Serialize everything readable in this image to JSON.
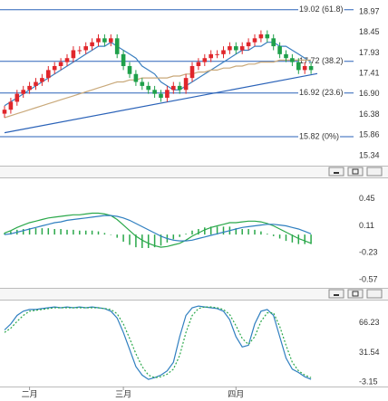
{
  "chart_data": [
    {
      "type": "candlestick",
      "ylim": [
        15.09,
        19.22
      ],
      "yticks": [
        15.34,
        15.86,
        16.38,
        {
          "value": 16.9,
          "label": "16.90"
        },
        17.41,
        17.93,
        18.45,
        18.97
      ],
      "up_color": "#e0262b",
      "down_color": "#1fa04a",
      "open": [
        16.4,
        16.5,
        16.7,
        16.9,
        17.0,
        17.1,
        17.2,
        17.3,
        17.5,
        17.6,
        17.7,
        17.8,
        18.0,
        18.0,
        18.1,
        18.2,
        18.3,
        18.2,
        18.3,
        17.9,
        17.6,
        17.4,
        17.2,
        17.1,
        17.0,
        16.9,
        16.8,
        17.0,
        17.1,
        17.0,
        17.3,
        17.6,
        17.7,
        17.8,
        17.9,
        17.9,
        18.0,
        18.1,
        18.0,
        18.1,
        18.2,
        18.3,
        18.4,
        18.3,
        18.1,
        17.9,
        17.8,
        17.7,
        17.5,
        17.6
      ],
      "high": [
        16.6,
        16.8,
        17.0,
        17.1,
        17.2,
        17.3,
        17.4,
        17.6,
        17.7,
        17.8,
        17.9,
        18.1,
        18.1,
        18.2,
        18.3,
        18.4,
        18.4,
        18.4,
        18.4,
        18.0,
        17.7,
        17.5,
        17.3,
        17.2,
        17.1,
        17.0,
        17.1,
        17.2,
        17.2,
        17.4,
        17.7,
        17.8,
        17.9,
        18.0,
        18.0,
        18.1,
        18.2,
        18.2,
        18.2,
        18.3,
        18.4,
        18.5,
        18.5,
        18.4,
        18.2,
        18.0,
        17.9,
        17.8,
        17.7,
        17.7
      ],
      "low": [
        16.3,
        16.4,
        16.6,
        16.8,
        16.9,
        17.0,
        17.1,
        17.2,
        17.4,
        17.5,
        17.6,
        17.7,
        17.9,
        17.9,
        18.0,
        18.1,
        18.1,
        18.1,
        17.8,
        17.5,
        17.3,
        17.1,
        17.0,
        16.9,
        16.8,
        16.7,
        16.7,
        16.9,
        16.9,
        16.9,
        17.2,
        17.5,
        17.6,
        17.7,
        17.8,
        17.8,
        17.9,
        17.9,
        17.9,
        18.0,
        18.1,
        18.2,
        18.2,
        18.0,
        17.8,
        17.7,
        17.6,
        17.4,
        17.4,
        17.4
      ],
      "close": [
        16.5,
        16.7,
        16.9,
        17.0,
        17.1,
        17.2,
        17.3,
        17.5,
        17.6,
        17.7,
        17.8,
        18.0,
        18.0,
        18.1,
        18.2,
        18.3,
        18.2,
        18.3,
        17.9,
        17.6,
        17.4,
        17.2,
        17.1,
        17.0,
        16.9,
        16.8,
        17.0,
        17.1,
        17.0,
        17.3,
        17.6,
        17.7,
        17.8,
        17.9,
        17.9,
        18.0,
        18.1,
        18.0,
        18.1,
        18.2,
        18.3,
        18.4,
        18.3,
        18.1,
        17.9,
        17.8,
        17.7,
        17.5,
        17.6,
        17.5
      ],
      "series": [
        {
          "color": "#3a7fc0",
          "values": [
            16.6,
            16.7,
            16.8,
            16.9,
            17.0,
            17.1,
            17.2,
            17.3,
            17.4,
            17.5,
            17.6,
            17.7,
            17.8,
            17.9,
            18.0,
            18.1,
            18.1,
            18.2,
            18.1,
            18.0,
            17.9,
            17.8,
            17.6,
            17.5,
            17.4,
            17.2,
            17.1,
            17.0,
            17.0,
            17.1,
            17.2,
            17.3,
            17.4,
            17.5,
            17.6,
            17.7,
            17.8,
            17.9,
            18.0,
            18.0,
            18.1,
            18.1,
            18.2,
            18.2,
            18.1,
            18.1,
            18.0,
            17.9,
            17.8,
            17.7
          ]
        },
        {
          "color": "#c9a97a",
          "values": [
            16.3,
            16.35,
            16.4,
            16.45,
            16.5,
            16.55,
            16.6,
            16.65,
            16.7,
            16.75,
            16.8,
            16.85,
            16.9,
            16.95,
            17.0,
            17.05,
            17.1,
            17.15,
            17.2,
            17.2,
            17.25,
            17.25,
            17.3,
            17.3,
            17.3,
            17.3,
            17.3,
            17.35,
            17.35,
            17.4,
            17.4,
            17.45,
            17.45,
            17.5,
            17.5,
            17.55,
            17.55,
            17.6,
            17.6,
            17.65,
            17.65,
            17.7,
            17.7,
            17.7,
            17.75,
            17.75,
            17.75,
            17.75,
            17.75,
            17.75
          ]
        }
      ],
      "levels_color": "#2a62b8",
      "levels": [
        {
          "value": 19.02,
          "label": "19.02 (61.8)"
        },
        {
          "value": 17.72,
          "label": "17.72 (38.2)"
        },
        {
          "value": 16.92,
          "label": "16.92 (23.6)"
        },
        {
          "value": 15.82,
          "label": "15.82 (0%)"
        }
      ],
      "trendline": {
        "x": [
          0,
          50
        ],
        "values": [
          15.92,
          17.41
        ],
        "color": "#2a62b8"
      }
    },
    {
      "type": "line",
      "ylim": [
        -0.65,
        0.71
      ],
      "yticks": [
        -0.57,
        -0.23,
        0.11,
        0.45
      ],
      "series": [
        {
          "color": "#2aa84a",
          "style": "bar",
          "values": [
            0.02,
            0.04,
            0.06,
            0.07,
            0.08,
            0.08,
            0.08,
            0.08,
            0.07,
            0.07,
            0.06,
            0.06,
            0.05,
            0.05,
            0.05,
            0.04,
            0.02,
            0.0,
            -0.04,
            -0.09,
            -0.13,
            -0.16,
            -0.17,
            -0.17,
            -0.16,
            -0.14,
            -0.1,
            -0.06,
            -0.03,
            0.01,
            0.05,
            0.07,
            0.09,
            0.1,
            0.1,
            0.1,
            0.1,
            0.08,
            0.07,
            0.07,
            0.06,
            0.04,
            0.01,
            -0.02,
            -0.05,
            -0.08,
            -0.1,
            -0.12,
            -0.12,
            -0.12
          ]
        },
        {
          "color": "#2aa84a",
          "values": [
            0.02,
            0.05,
            0.09,
            0.12,
            0.15,
            0.17,
            0.19,
            0.21,
            0.22,
            0.23,
            0.24,
            0.25,
            0.25,
            0.26,
            0.27,
            0.27,
            0.26,
            0.24,
            0.19,
            0.12,
            0.05,
            -0.02,
            -0.07,
            -0.11,
            -0.14,
            -0.16,
            -0.15,
            -0.13,
            -0.11,
            -0.07,
            -0.02,
            0.02,
            0.06,
            0.09,
            0.11,
            0.13,
            0.15,
            0.15,
            0.16,
            0.17,
            0.17,
            0.16,
            0.14,
            0.11,
            0.07,
            0.03,
            -0.01,
            -0.05,
            -0.08,
            -0.11
          ]
        },
        {
          "color": "#2f7fc0",
          "values": [
            0.0,
            0.01,
            0.03,
            0.05,
            0.07,
            0.09,
            0.11,
            0.13,
            0.15,
            0.16,
            0.18,
            0.19,
            0.2,
            0.21,
            0.22,
            0.23,
            0.24,
            0.24,
            0.23,
            0.21,
            0.18,
            0.14,
            0.1,
            0.06,
            0.02,
            -0.02,
            -0.05,
            -0.07,
            -0.08,
            -0.08,
            -0.07,
            -0.05,
            -0.03,
            -0.01,
            0.01,
            0.03,
            0.05,
            0.07,
            0.09,
            0.1,
            0.11,
            0.12,
            0.13,
            0.13,
            0.12,
            0.11,
            0.09,
            0.07,
            0.04,
            0.01
          ]
        }
      ]
    },
    {
      "type": "line",
      "ylim": [
        -6.3,
        92.5
      ],
      "yticks": [
        -3.15,
        31.54,
        66.23
      ],
      "categories": [
        null,
        null,
        null,
        null,
        "二月",
        null,
        null,
        null,
        null,
        null,
        null,
        null,
        null,
        null,
        null,
        null,
        null,
        null,
        null,
        "三月",
        null,
        null,
        null,
        null,
        null,
        null,
        null,
        null,
        null,
        null,
        null,
        null,
        null,
        null,
        null,
        null,
        null,
        "四月",
        null,
        null,
        null,
        null,
        null,
        null,
        null,
        null,
        null,
        null,
        null,
        null
      ],
      "series": [
        {
          "color": "#2f7fc0",
          "values": [
            58,
            65,
            75,
            80,
            82,
            82,
            83,
            84,
            85,
            84,
            85,
            84,
            85,
            84,
            85,
            84,
            83,
            80,
            72,
            55,
            35,
            15,
            5,
            0,
            2,
            5,
            10,
            20,
            50,
            75,
            84,
            86,
            85,
            84,
            83,
            80,
            70,
            50,
            38,
            40,
            65,
            80,
            82,
            75,
            50,
            25,
            12,
            8,
            3,
            0
          ]
        },
        {
          "color": "#2aa84a",
          "style": "dotted",
          "values": [
            55,
            60,
            68,
            75,
            80,
            81,
            82,
            83,
            84,
            84,
            84,
            84,
            84,
            84,
            84,
            84,
            83,
            82,
            77,
            65,
            48,
            30,
            15,
            5,
            2,
            3,
            6,
            12,
            28,
            55,
            75,
            83,
            85,
            85,
            84,
            82,
            76,
            63,
            48,
            41,
            50,
            68,
            78,
            78,
            62,
            40,
            20,
            10,
            5,
            2
          ]
        }
      ]
    }
  ]
}
